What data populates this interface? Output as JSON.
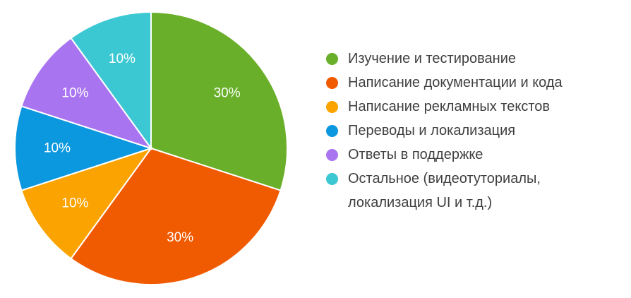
{
  "chart_data": {
    "type": "pie",
    "title": "",
    "slices": [
      {
        "label": "Изучение и тестирование",
        "value": 30,
        "display": "30%",
        "color": "#6AAF2A"
      },
      {
        "label": "Написание документации и кода",
        "value": 30,
        "display": "30%",
        "color": "#F05A00"
      },
      {
        "label": "Написание рекламных текстов",
        "value": 10,
        "display": "10%",
        "color": "#FBA300"
      },
      {
        "label": "Переводы и локализация",
        "value": 10,
        "display": "10%",
        "color": "#0C98DE"
      },
      {
        "label": "Ответы в поддержке",
        "value": 10,
        "display": "10%",
        "color": "#A874F0"
      },
      {
        "label": "Остальное (видеотуториалы,\nлокализация UI и т.д.)",
        "value": 10,
        "display": "10%",
        "color": "#3CC8D3"
      }
    ],
    "legend_position": "right"
  }
}
